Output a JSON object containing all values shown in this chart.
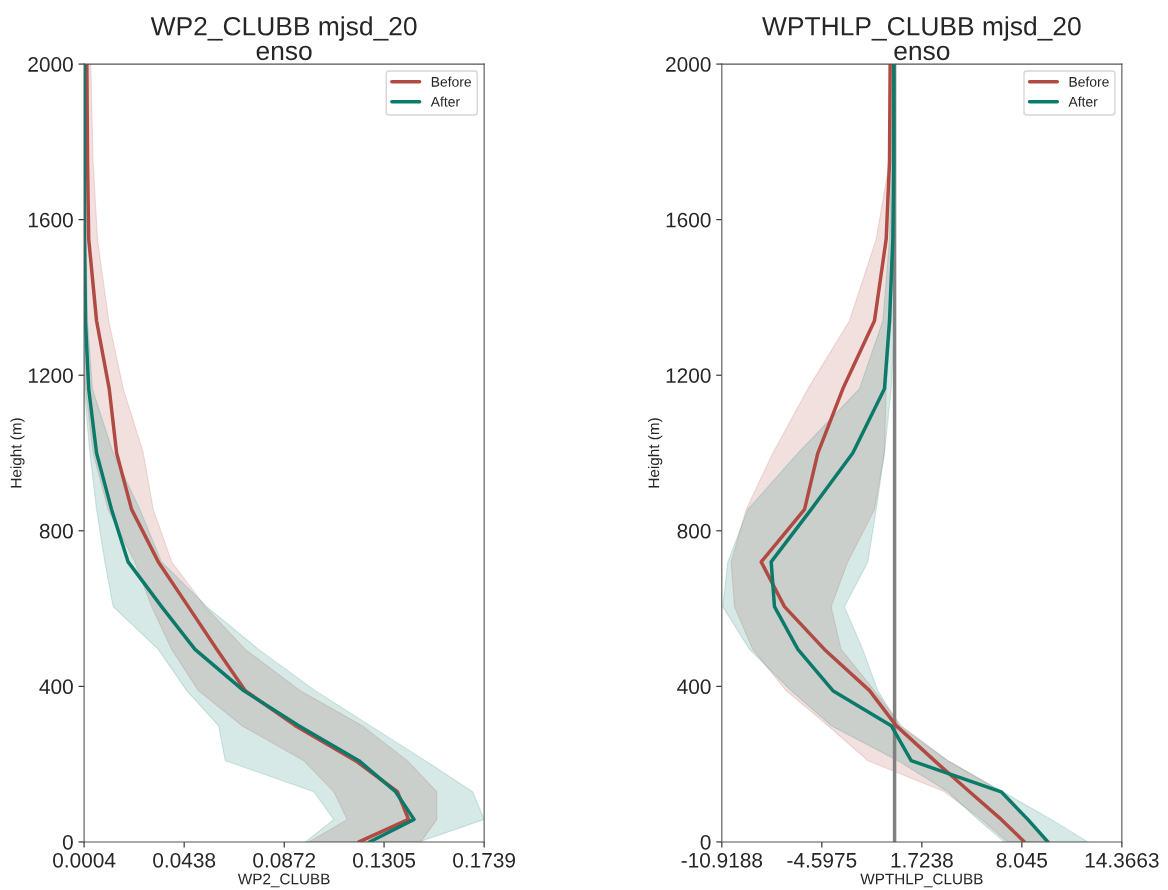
{
  "chart_data": [
    {
      "type": "line",
      "title": "WP2_CLUBB mjsd_20",
      "subtitle": "enso",
      "xlabel": "WP2_CLUBB",
      "ylabel": "Height (m)",
      "orientation": "horizontal",
      "x": [
        0,
        58,
        129,
        209,
        299,
        389,
        495,
        605,
        720,
        855,
        1000,
        1165,
        1340,
        1550,
        1750,
        2000
      ],
      "series": [
        {
          "name": "Before",
          "color": "#b04a42",
          "values": [
            0.1196,
            0.1411,
            0.1363,
            0.1181,
            0.092,
            0.0703,
            0.058,
            0.0456,
            0.0326,
            0.021,
            0.0145,
            0.0113,
            0.0058,
            0.0024,
            0.0019,
            0.0016
          ],
          "lower": [
            0.0979,
            0.1145,
            0.1087,
            0.0957,
            0.0688,
            0.05,
            0.0384,
            0.0297,
            0.0224,
            0.0108,
            0.0043,
            0.001,
            0.0007,
            0.0006,
            0.0005,
            0.0005
          ],
          "upper": [
            0.1464,
            0.1534,
            0.1534,
            0.1406,
            0.121,
            0.0942,
            0.0703,
            0.0529,
            0.0384,
            0.0304,
            0.0261,
            0.0174,
            0.0111,
            0.0062,
            0.0043,
            0.0033
          ]
        },
        {
          "name": "After",
          "color": "#0c7a6a",
          "values": [
            0.1242,
            0.1435,
            0.1355,
            0.1196,
            0.0935,
            0.0696,
            0.0485,
            0.034,
            0.0195,
            0.0123,
            0.0058,
            0.0024,
            0.001,
            0.0006,
            0.0006,
            0.0006
          ],
          "lower": [
            0.0964,
            0.1087,
            0.1,
            0.0616,
            0.0587,
            0.0449,
            0.0326,
            0.013,
            0.0094,
            0.0058,
            0.0029,
            0.0004,
            0.0004,
            0.0004,
            0.0004,
            0.0004
          ],
          "upper": [
            0.1457,
            0.1739,
            0.1689,
            0.1484,
            0.1245,
            0.1007,
            0.0761,
            0.0536,
            0.034,
            0.0246,
            0.013,
            0.004,
            0.0019,
            0.0012,
            0.001,
            0.0008
          ]
        }
      ],
      "xlim": [
        0.0004,
        0.1739
      ],
      "xticks": [
        0.0004,
        0.0438,
        0.0872,
        0.1305,
        0.1739
      ],
      "ylim": [
        0,
        2000
      ],
      "yticks": [
        0,
        400,
        800,
        1200,
        1600,
        2000
      ],
      "legend": "top right",
      "grid": false
    },
    {
      "type": "line",
      "title": "WPTHLP_CLUBB mjsd_20",
      "subtitle": "enso",
      "xlabel": "WPTHLP_CLUBB",
      "ylabel": "Height (m)",
      "orientation": "horizontal",
      "x": [
        0,
        58,
        129,
        209,
        299,
        389,
        495,
        605,
        720,
        855,
        1000,
        1165,
        1340,
        1550,
        1750,
        2000
      ],
      "series": [
        {
          "name": "Before",
          "color": "#b04a42",
          "values": [
            8.21,
            6.74,
            4.74,
            2.52,
            0.1,
            -1.58,
            -4.43,
            -6.96,
            -8.43,
            -5.69,
            -4.85,
            -3.27,
            -1.27,
            -0.53,
            -0.32,
            -0.28
          ],
          "lower": [
            7.16,
            5.47,
            3.16,
            -1.69,
            -4.22,
            -6.85,
            -8.96,
            -10.12,
            -10.33,
            -9.38,
            -7.69,
            -5.48,
            -2.85,
            -1.16,
            -0.32,
            -0.28
          ],
          "upper": [
            9.79,
            8.42,
            6.74,
            3.37,
            0.42,
            -1.27,
            -3.38,
            -4.01,
            -2.96,
            -1.27,
            -0.64,
            -0.53,
            -0.21,
            -0.11,
            -0.11,
            -0.11
          ]
        },
        {
          "name": "After",
          "color": "#0c7a6a",
          "values": [
            9.69,
            8.42,
            6.74,
            1.05,
            -0.21,
            -3.9,
            -6.11,
            -7.59,
            -7.8,
            -5.27,
            -2.64,
            -0.64,
            -0.32,
            -0.11,
            -0.05,
            -0.05
          ],
          "lower": [
            6.95,
            5.26,
            3.37,
            0.21,
            -4.01,
            -6.54,
            -9.17,
            -10.86,
            -10.54,
            -9.27,
            -6.11,
            -2.22,
            -0.74,
            -0.32,
            -0.21,
            -0.17
          ],
          "upper": [
            12.22,
            9.9,
            6.84,
            3.37,
            0.31,
            -1.06,
            -2.01,
            -3.17,
            -1.69,
            -1.16,
            -0.64,
            -0.21,
            0.0,
            0.04,
            0.04,
            0.04
          ]
        }
      ],
      "xlim": [
        -10.9188,
        14.3663
      ],
      "xticks": [
        -10.9188,
        -4.5975,
        1.7238,
        8.045,
        14.3663
      ],
      "ylim": [
        0,
        2000
      ],
      "yticks": [
        0,
        400,
        800,
        1200,
        1600,
        2000
      ],
      "legend": "top right",
      "grid": false,
      "ref_lines": [
        {
          "axis": "x",
          "value": 0,
          "color": "#808080"
        }
      ]
    }
  ]
}
